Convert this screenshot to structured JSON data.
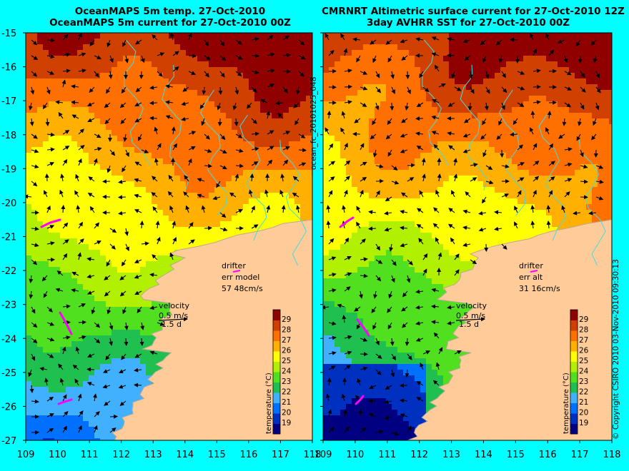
{
  "left_panel": {
    "title_lines": [
      "OceanMAPS 5m temp. 27-Oct-2010",
      "OceanMAPS 5m current for 27-Oct-2010 00Z"
    ],
    "drifter_label": "drifter",
    "err_label": "err model",
    "err_value": "57 48cm/s"
  },
  "right_panel": {
    "title_lines": [
      "CMRNRT Altimetric surface current for 27-Oct-2010 12Z",
      "3day AVHRR SST for 27-Oct-2010 00Z"
    ],
    "drifter_label": "drifter",
    "err_label": "err alt",
    "err_value": "31 16cm/s"
  },
  "velocity_key": {
    "label": "velocity",
    "speed": "0.5 m/s",
    "duration": "1.5 d"
  },
  "colorbar": {
    "label": "temperature (°C)",
    "ticks": [
      "19",
      "20",
      "21",
      "22",
      "23",
      "24",
      "25",
      "26",
      "27",
      "28",
      "29"
    ]
  },
  "axes": {
    "lat_ticks": [
      "-15",
      "-16",
      "-17",
      "-18",
      "-19",
      "-20",
      "-21",
      "-22",
      "-23",
      "-24",
      "-25",
      "-26",
      "-27"
    ],
    "lon_ticks": [
      "109",
      "110",
      "111",
      "112",
      "113",
      "114",
      "115",
      "116",
      "117",
      "118"
    ]
  },
  "side_labels": {
    "middle": "ocean_fc_20101025_048",
    "right": "© Copyright CSIRO 2010   03-Nov-2010 09:30:13"
  },
  "colors": {
    "background": "#00ffff",
    "land": "#ffcc99",
    "coastline": "#44dddd",
    "drifter": "#ff00ff",
    "temperature_scale": [
      "#000080",
      "#0030c0",
      "#0070ff",
      "#40b0ff",
      "#20c050",
      "#50e020",
      "#b0f000",
      "#ffff00",
      "#ffb000",
      "#ff7000",
      "#d04000",
      "#900000"
    ]
  }
}
